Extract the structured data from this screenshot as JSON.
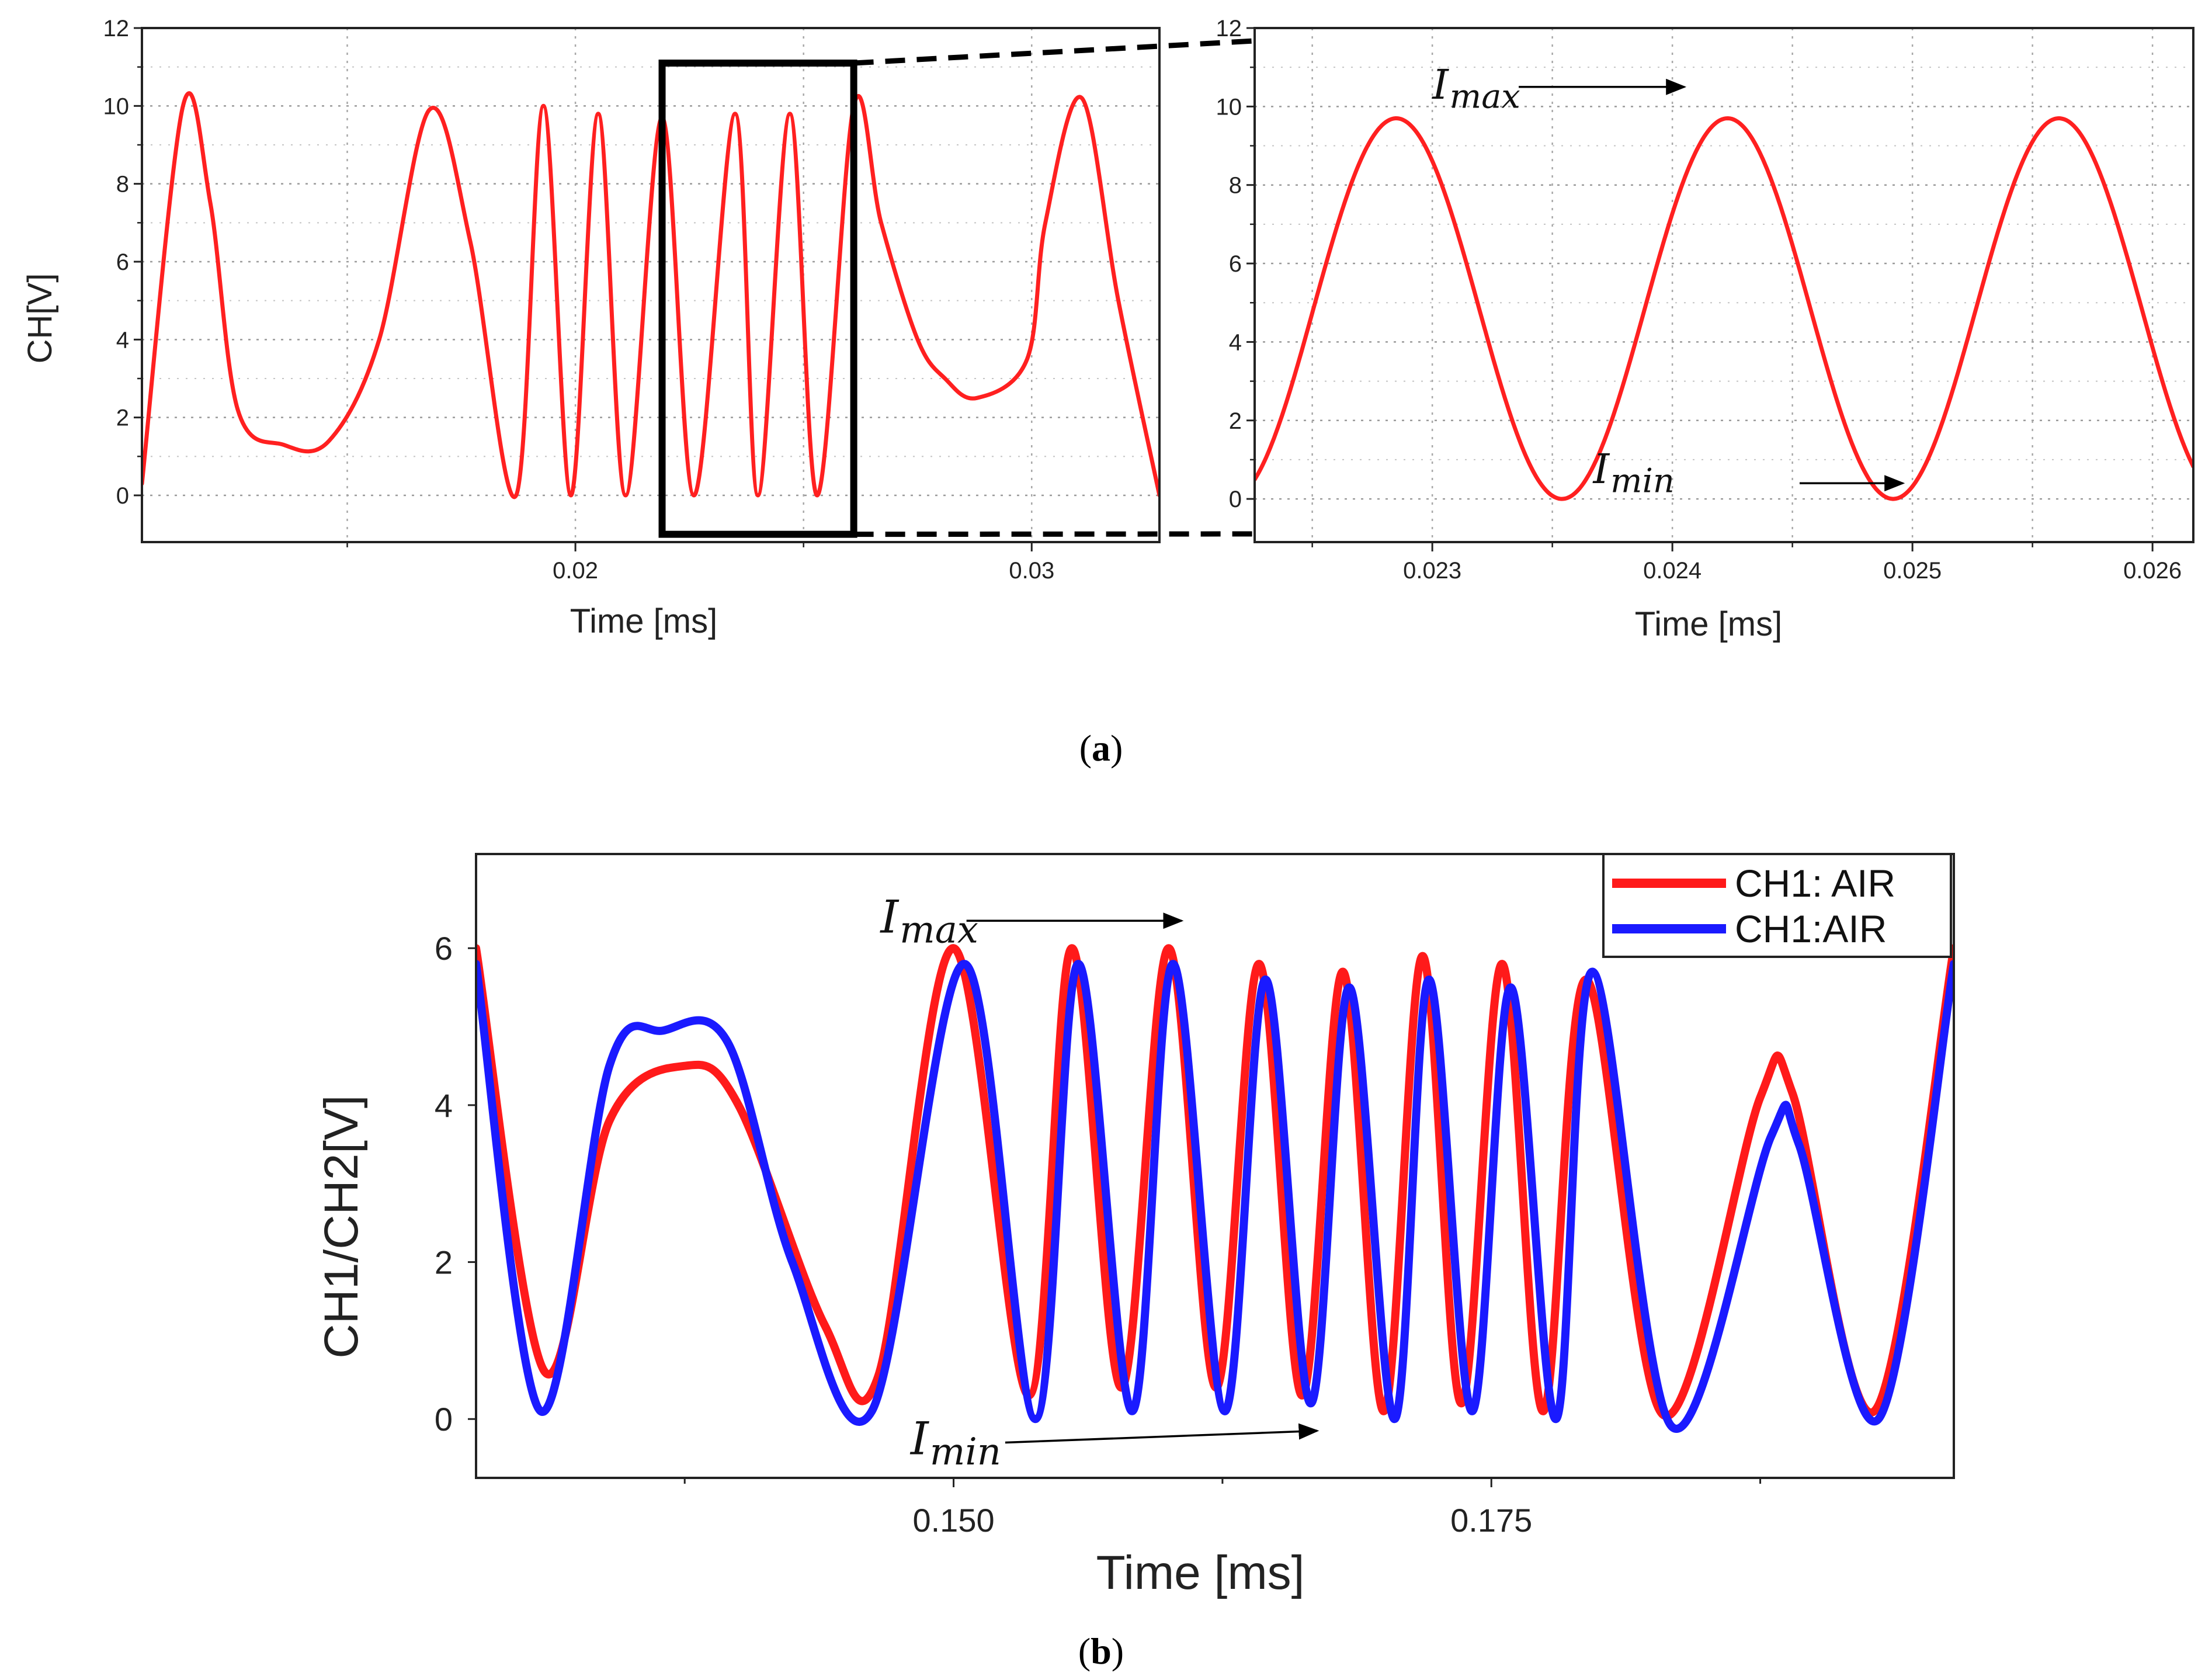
{
  "chart_data": [
    {
      "id": "a1",
      "type": "line",
      "panel": "(a) left",
      "xlabel": "Time [ms]",
      "ylabel": "CH[V]",
      "xlim": [
        0.0105,
        0.0328
      ],
      "ylim": [
        -1.2,
        12
      ],
      "xticks": [
        0.02,
        0.03
      ],
      "xtick_labels": [
        "0.02",
        "0.03"
      ],
      "yticks": [
        0,
        2,
        4,
        6,
        8,
        10,
        12
      ],
      "ytick_labels": [
        "0",
        "2",
        "4",
        "6",
        "8",
        "10",
        "12"
      ],
      "series": [
        {
          "name": "CH",
          "color": "#ff2020",
          "x": [
            0.0105,
            0.0114,
            0.012,
            0.0126,
            0.0136,
            0.0146,
            0.0157,
            0.0168,
            0.0177,
            0.0187,
            0.0193,
            0.0199,
            0.0205,
            0.0211,
            0.0219,
            0.0226,
            0.0235,
            0.024,
            0.0247,
            0.0253,
            0.0261,
            0.0267,
            0.0275,
            0.0281,
            0.0288,
            0.0299,
            0.0303,
            0.0311,
            0.0319,
            0.0328
          ],
          "values": [
            0.3,
            10.0,
            7.5,
            2.2,
            1.3,
            1.4,
            4.0,
            9.9,
            6.5,
            0.0,
            10.0,
            0.0,
            9.8,
            0.0,
            9.7,
            0.0,
            9.8,
            0.0,
            9.8,
            0.0,
            10.0,
            7.0,
            4.0,
            3.0,
            2.5,
            3.5,
            7.0,
            10.2,
            5.0,
            0.0
          ]
        }
      ],
      "highlight_box": {
        "x_range": [
          0.0219,
          0.0261
        ],
        "y_range": [
          -1.0,
          11.1
        ]
      }
    },
    {
      "id": "a2",
      "type": "line",
      "panel": "(a) right",
      "xlabel": "Time [ms]",
      "ylabel": "",
      "xlim": [
        0.02226,
        0.02617
      ],
      "ylim": [
        -1.1,
        12
      ],
      "xticks": [
        0.023,
        0.024,
        0.025,
        0.026
      ],
      "xtick_labels": [
        "0.023",
        "0.024",
        "0.025",
        "0.026"
      ],
      "yticks": [
        0,
        2,
        4,
        6,
        8,
        10,
        12
      ],
      "ytick_labels": [
        "0",
        "2",
        "4",
        "6",
        "8",
        "10",
        "12"
      ],
      "series": [
        {
          "name": "CH",
          "color": "#ff2020",
          "sinusoid": {
            "mean": 4.85,
            "amplitude": 4.85,
            "period_ms": 0.00138,
            "peak_at": 0.02285
          }
        }
      ],
      "annotations": [
        {
          "label": "I",
          "sub": "max",
          "text_at": [
            0.023,
            10.2
          ],
          "arrow_from": [
            0.02336,
            10.5
          ],
          "arrow_to": [
            0.02405,
            10.5
          ]
        },
        {
          "label": "I",
          "sub": "min",
          "text_at": [
            0.02367,
            0.4
          ],
          "arrow_from": [
            0.02453,
            0.4
          ],
          "arrow_to": [
            0.02496,
            0.4
          ]
        }
      ]
    },
    {
      "id": "b",
      "type": "line",
      "panel": "(b)",
      "xlabel": "Time [ms]",
      "ylabel": "CH1/CH2[V]",
      "xlim": [
        0.1278,
        0.1965
      ],
      "ylim": [
        -0.75,
        7.2
      ],
      "xticks": [
        0.15,
        0.175
      ],
      "xtick_labels": [
        "0.150",
        "0.175"
      ],
      "minor_xticks": [
        0.1375,
        0.1625,
        0.1875
      ],
      "yticks": [
        0,
        2,
        4,
        6
      ],
      "ytick_labels": [
        "0",
        "2",
        "4",
        "6"
      ],
      "legend": {
        "position": "top-right"
      },
      "series": [
        {
          "name": "CH1: AIR",
          "color": "#ff1a1a",
          "x": [
            0.1278,
            0.131,
            0.134,
            0.1375,
            0.14,
            0.144,
            0.1465,
            0.15,
            0.1535,
            0.1555,
            0.1578,
            0.16,
            0.1622,
            0.1642,
            0.1662,
            0.1681,
            0.17,
            0.1718,
            0.1736,
            0.1755,
            0.1774,
            0.1794,
            0.183,
            0.1875,
            0.189,
            0.1928,
            0.1965
          ],
          "values": [
            6.0,
            0.6,
            3.8,
            4.5,
            4.0,
            1.2,
            0.55,
            6.0,
            0.3,
            6.0,
            0.4,
            6.0,
            0.4,
            5.8,
            0.3,
            5.7,
            0.1,
            5.9,
            0.2,
            5.8,
            0.1,
            5.6,
            0.05,
            4.1,
            4.15,
            0.1,
            6.0
          ]
        },
        {
          "name": "CH1:AIR",
          "color": "#1a1aff",
          "x": [
            0.1278,
            0.1308,
            0.134,
            0.1365,
            0.1395,
            0.1425,
            0.1462,
            0.1505,
            0.1538,
            0.1558,
            0.1583,
            0.1602,
            0.1626,
            0.1645,
            0.1666,
            0.1684,
            0.1705,
            0.1721,
            0.1741,
            0.1759,
            0.178,
            0.1797,
            0.1834,
            0.188,
            0.1893,
            0.193,
            0.1965
          ],
          "values": [
            5.8,
            0.1,
            4.5,
            4.95,
            4.8,
            2.0,
            0.1,
            5.8,
            0.0,
            5.8,
            0.1,
            5.8,
            0.1,
            5.6,
            0.2,
            5.5,
            0.0,
            5.6,
            0.1,
            5.5,
            0.0,
            5.7,
            -0.1,
            3.6,
            3.5,
            0.0,
            5.8
          ]
        }
      ],
      "annotations": [
        {
          "label": "I",
          "sub": "max",
          "text_at": [
            0.1466,
            6.2
          ],
          "arrow_from": [
            0.1506,
            6.35
          ],
          "arrow_to": [
            0.1606,
            6.35
          ]
        },
        {
          "label": "I",
          "sub": "min",
          "text_at": [
            0.148,
            -0.45
          ],
          "arrow_from": [
            0.1524,
            -0.3
          ],
          "arrow_to": [
            0.1669,
            -0.15
          ]
        }
      ]
    }
  ],
  "captions": {
    "a": "(a)",
    "b": "(b)"
  },
  "zoom_connector_style": "dashed"
}
